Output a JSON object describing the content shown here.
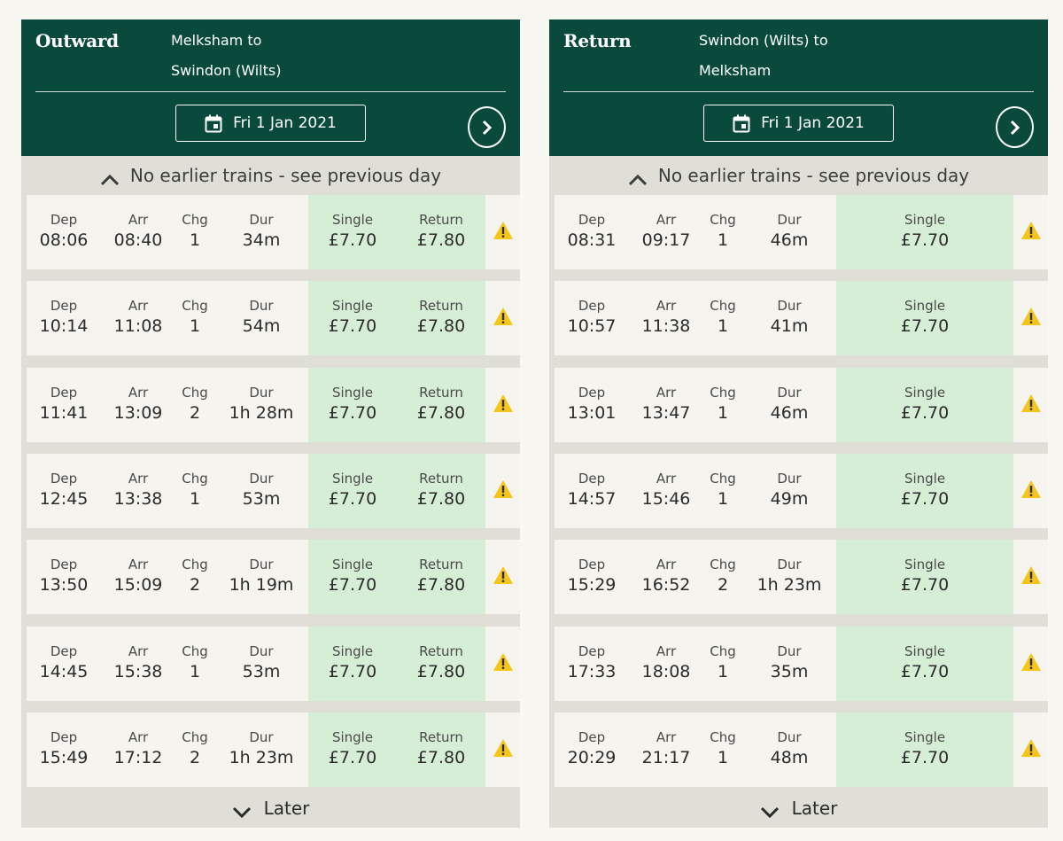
{
  "outward": {
    "title": "Outward",
    "route_from": "Melksham to",
    "route_to": "Swindon (Wilts)",
    "date": "Fri 1 Jan 2021",
    "earlier_text": "No earlier trains - see previous day",
    "later_text": "Later",
    "labels": {
      "dep": "Dep",
      "arr": "Arr",
      "chg": "Chg",
      "dur": "Dur",
      "single": "Single",
      "return": "Return"
    },
    "journeys": [
      {
        "dep": "08:06",
        "arr": "08:40",
        "chg": "1",
        "dur": "34m",
        "single": "£7.70",
        "return": "£7.80"
      },
      {
        "dep": "10:14",
        "arr": "11:08",
        "chg": "1",
        "dur": "54m",
        "single": "£7.70",
        "return": "£7.80"
      },
      {
        "dep": "11:41",
        "arr": "13:09",
        "chg": "2",
        "dur": "1h 28m",
        "single": "£7.70",
        "return": "£7.80"
      },
      {
        "dep": "12:45",
        "arr": "13:38",
        "chg": "1",
        "dur": "53m",
        "single": "£7.70",
        "return": "£7.80"
      },
      {
        "dep": "13:50",
        "arr": "15:09",
        "chg": "2",
        "dur": "1h 19m",
        "single": "£7.70",
        "return": "£7.80"
      },
      {
        "dep": "14:45",
        "arr": "15:38",
        "chg": "1",
        "dur": "53m",
        "single": "£7.70",
        "return": "£7.80"
      },
      {
        "dep": "15:49",
        "arr": "17:12",
        "chg": "2",
        "dur": "1h 23m",
        "single": "£7.70",
        "return": "£7.80"
      }
    ]
  },
  "return": {
    "title": "Return",
    "route_from": "Swindon (Wilts) to",
    "route_to": "Melksham",
    "date": "Fri 1 Jan 2021",
    "earlier_text": "No earlier trains - see previous day",
    "later_text": "Later",
    "labels": {
      "dep": "Dep",
      "arr": "Arr",
      "chg": "Chg",
      "dur": "Dur",
      "single": "Single"
    },
    "journeys": [
      {
        "dep": "08:31",
        "arr": "09:17",
        "chg": "1",
        "dur": "46m",
        "single": "£7.70"
      },
      {
        "dep": "10:57",
        "arr": "11:38",
        "chg": "1",
        "dur": "41m",
        "single": "£7.70"
      },
      {
        "dep": "13:01",
        "arr": "13:47",
        "chg": "1",
        "dur": "46m",
        "single": "£7.70"
      },
      {
        "dep": "14:57",
        "arr": "15:46",
        "chg": "1",
        "dur": "49m",
        "single": "£7.70"
      },
      {
        "dep": "15:29",
        "arr": "16:52",
        "chg": "2",
        "dur": "1h 23m",
        "single": "£7.70"
      },
      {
        "dep": "17:33",
        "arr": "18:08",
        "chg": "1",
        "dur": "35m",
        "single": "£7.70"
      },
      {
        "dep": "20:29",
        "arr": "21:17",
        "chg": "1",
        "dur": "48m",
        "single": "£7.70"
      }
    ]
  },
  "colors": {
    "header_bg": "#0a4a3c",
    "price_bg": "#d6eed6",
    "warning": "#f5c518",
    "panel_bg": "#dfdfd8"
  },
  "icons": {
    "date": "calendar-icon",
    "next": "chevron-right-icon",
    "earlier": "chevron-up-icon",
    "later": "chevron-down-icon",
    "alert": "warning-icon"
  }
}
